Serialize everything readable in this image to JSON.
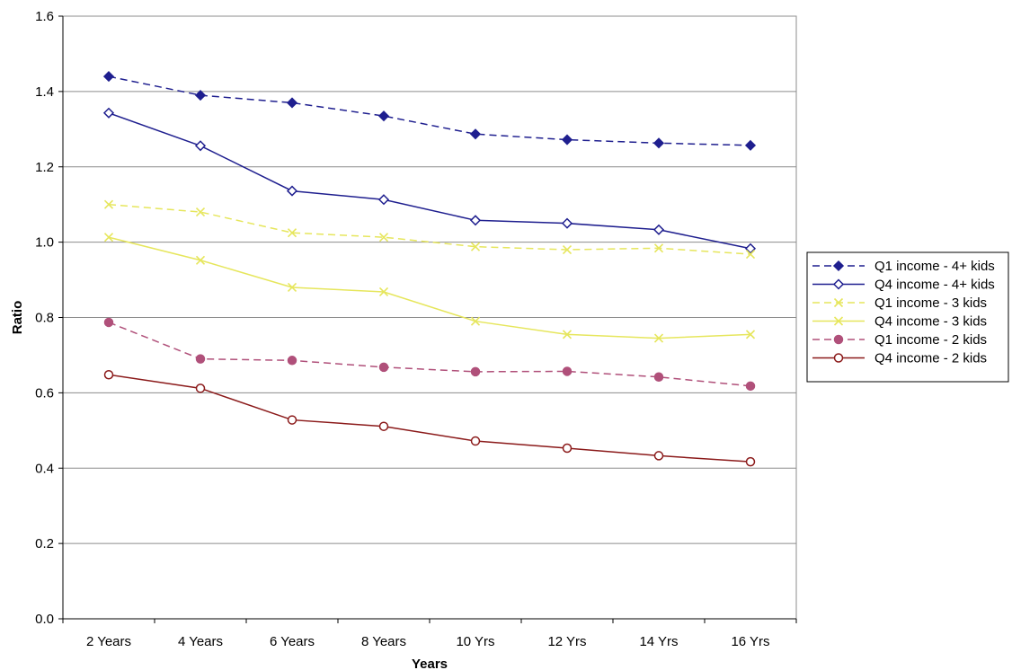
{
  "chart_data": {
    "type": "line",
    "title": "",
    "xlabel": "Years",
    "ylabel": "Ratio",
    "ylim": [
      0,
      1.6
    ],
    "yticks": [
      "0.0",
      "0.2",
      "0.4",
      "0.6",
      "0.8",
      "1.0",
      "1.2",
      "1.4",
      "1.6"
    ],
    "categories": [
      "2 Years",
      "4 Years",
      "6 Years",
      "8 Years",
      "10 Yrs",
      "12 Yrs",
      "14 Yrs",
      "16 Yrs"
    ],
    "grid": true,
    "legend_position": "right",
    "series": [
      {
        "name": "Q1 income - 4+ kids",
        "values": [
          1.44,
          1.39,
          1.37,
          1.335,
          1.287,
          1.272,
          1.263,
          1.257
        ],
        "color": "#1f1f8f",
        "dash": true,
        "marker": "diamond-filled"
      },
      {
        "name": "Q4 income - 4+ kids",
        "values": [
          1.343,
          1.256,
          1.136,
          1.113,
          1.058,
          1.05,
          1.033,
          0.983
        ],
        "color": "#1f1f8f",
        "dash": false,
        "marker": "diamond-open"
      },
      {
        "name": "Q1 income - 3 kids",
        "values": [
          1.1,
          1.08,
          1.025,
          1.013,
          0.988,
          0.98,
          0.984,
          0.968
        ],
        "color": "#e6e65c",
        "dash": true,
        "marker": "x"
      },
      {
        "name": "Q4 income - 3 kids",
        "values": [
          1.013,
          0.952,
          0.88,
          0.868,
          0.79,
          0.755,
          0.745,
          0.755
        ],
        "color": "#e6e65c",
        "dash": false,
        "marker": "x"
      },
      {
        "name": "Q1 income - 2 kids",
        "values": [
          0.787,
          0.69,
          0.686,
          0.668,
          0.656,
          0.657,
          0.642,
          0.618
        ],
        "color": "#b0507a",
        "dash": true,
        "marker": "circle-filled"
      },
      {
        "name": "Q4 income - 2 kids",
        "values": [
          0.648,
          0.612,
          0.528,
          0.511,
          0.472,
          0.453,
          0.433,
          0.417
        ],
        "color": "#8b1a1a",
        "dash": false,
        "marker": "circle-open"
      }
    ]
  }
}
